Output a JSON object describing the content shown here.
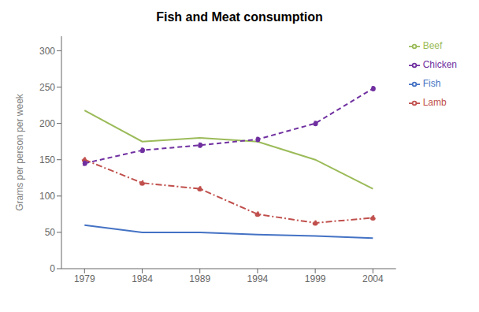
{
  "chart_data": {
    "type": "line",
    "title": "Fish and Meat consumption",
    "ylabel": "Grams per person per week",
    "x": [
      1979,
      1984,
      1989,
      1994,
      1999,
      2004
    ],
    "series": [
      {
        "name": "Fish",
        "color": "#4472c4",
        "values": [
          60,
          50,
          50,
          47,
          45,
          42
        ],
        "line_style": "solid"
      },
      {
        "name": "Lamb",
        "color": "#c0504d",
        "values": [
          150,
          118,
          110,
          75,
          63,
          70
        ],
        "line_style": "dashdot",
        "marker": "point"
      },
      {
        "name": "Beef",
        "color": "#9bbb59",
        "values": [
          218,
          175,
          180,
          175,
          150,
          110
        ],
        "line_style": "solid"
      },
      {
        "name": "Chicken",
        "color": "#7030a0",
        "values": [
          145,
          163,
          170,
          178,
          200,
          248
        ],
        "line_style": "dashed",
        "marker": "point"
      }
    ],
    "xlim": [
      1977,
      2006
    ],
    "xticks": [
      1979,
      1984,
      1989,
      1994,
      1999,
      2004
    ],
    "ylim": [
      0,
      320
    ],
    "yticks": [
      0,
      50,
      100,
      150,
      200,
      250,
      300
    ],
    "grid": false,
    "legend": "right"
  }
}
